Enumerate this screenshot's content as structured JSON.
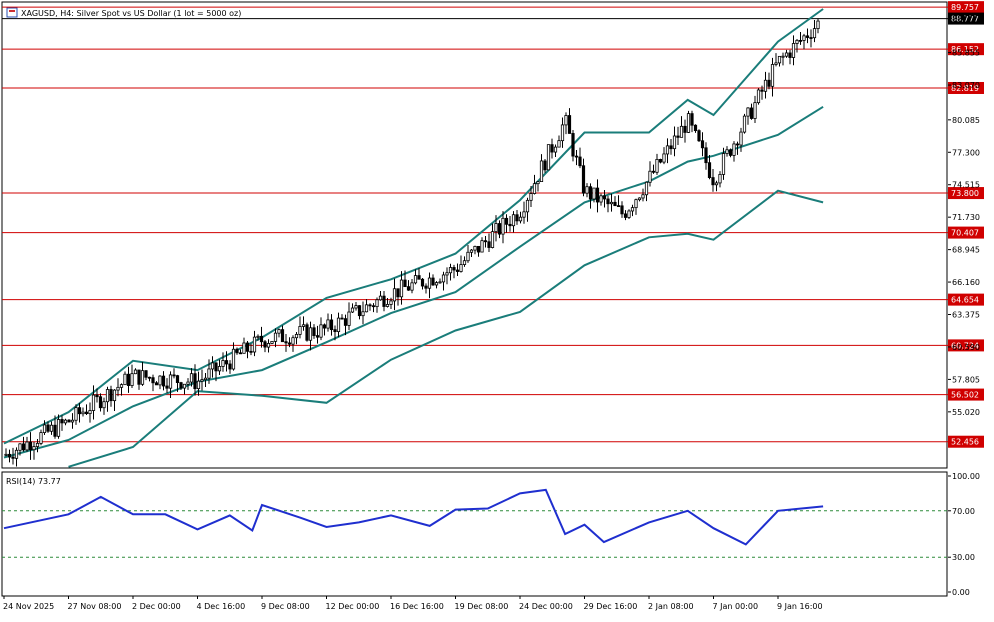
{
  "window": {
    "title": "XAGUSD, H4:  Silver Spot vs US Dollar (1 lot = 5000 oz)",
    "icon": "chart-window-icon"
  },
  "colors": {
    "background": "#ffffff",
    "grid": "#000000",
    "candle": "#000000",
    "level_line": "#d00000",
    "level_label_bg": "#d00000",
    "level_label_text": "#ffffff",
    "bollinger": "#1a7d7a",
    "rsi": "#1f2fcf",
    "rsi_level": "#2e8b3a"
  },
  "chart_data": [
    {
      "type": "candlestick",
      "symbol": "XAGUSD",
      "timeframe": "H4",
      "title": "XAGUSD, H4:  Silver Spot vs US Dollar (1 lot = 5000 oz)",
      "ylim": [
        50.2,
        90.2
      ],
      "y_tick_labels": [
        "88.777",
        "85.855",
        "83.070",
        "80.085",
        "77.300",
        "74.515",
        "71.730",
        "68.945",
        "66.160",
        "63.375",
        "60.590",
        "57.805",
        "55.020"
      ],
      "x_tick_labels": [
        "24 Nov 2025",
        "27 Nov 08:00",
        "2 Dec 00:00",
        "4 Dec 16:00",
        "9 Dec 08:00",
        "12 Dec 00:00",
        "16 Dec 16:00",
        "19 Dec 08:00",
        "24 Dec 00:00",
        "29 Dec 16:00",
        "2 Jan 08:00",
        "7 Jan 00:00",
        "9 Jan 16:00"
      ],
      "current_price_label": "88.777",
      "ask_price_label": "89.757",
      "horizontal_levels": [
        86.152,
        82.819,
        73.8,
        70.407,
        64.654,
        60.724,
        56.502,
        52.456
      ],
      "horizontal_level_labels": [
        "86.152",
        "82.819",
        "73.800",
        "70.407",
        "64.654",
        "60.724",
        "56.502",
        "52.456"
      ],
      "series": [
        {
          "name": "close (approx.)",
          "points": [
            [
              "24 Nov 2025",
              51.3
            ],
            [
              "27 Nov 08:00",
              54.2
            ],
            [
              "2 Dec 00:00",
              58.1
            ],
            [
              "4 Dec 16:00",
              57.6
            ],
            [
              "9 Dec 08:00",
              61.2
            ],
            [
              "12 Dec 00:00",
              62.1
            ],
            [
              "16 Dec 16:00",
              65.2
            ],
            [
              "19 Dec 08:00",
              67.3
            ],
            [
              "24 Dec 00:00",
              72.3
            ],
            [
              "26 Dec",
              80.0
            ],
            [
              "29 Dec 16:00",
              74.0
            ],
            [
              "31 Dec",
              72.0
            ],
            [
              "2 Jan 08:00",
              75.0
            ],
            [
              "5 Jan",
              80.0
            ],
            [
              "7 Jan 00:00",
              75.0
            ],
            [
              "9 Jan 16:00",
              85.0
            ],
            [
              "12 Jan",
              88.8
            ]
          ]
        },
        {
          "name": "Bollinger upper (approx.)",
          "points": [
            [
              "24 Nov 2025",
              52.3
            ],
            [
              "27 Nov 08:00",
              55.0
            ],
            [
              "2 Dec 00:00",
              59.4
            ],
            [
              "4 Dec 16:00",
              58.6
            ],
            [
              "9 Dec 08:00",
              61.4
            ],
            [
              "12 Dec 00:00",
              64.8
            ],
            [
              "16 Dec 16:00",
              66.4
            ],
            [
              "19 Dec 08:00",
              68.6
            ],
            [
              "24 Dec 00:00",
              73.2
            ],
            [
              "29 Dec 16:00",
              79.0
            ],
            [
              "2 Jan 08:00",
              79.0
            ],
            [
              "5 Jan",
              81.8
            ],
            [
              "7 Jan 00:00",
              80.5
            ],
            [
              "9 Jan 16:00",
              86.8
            ],
            [
              "12 Jan",
              89.6
            ]
          ]
        },
        {
          "name": "Bollinger middle (approx.)",
          "points": [
            [
              "24 Nov 2025",
              51.1
            ],
            [
              "27 Nov 08:00",
              52.6
            ],
            [
              "2 Dec 00:00",
              55.5
            ],
            [
              "4 Dec 16:00",
              57.6
            ],
            [
              "9 Dec 08:00",
              58.6
            ],
            [
              "12 Dec 00:00",
              61.0
            ],
            [
              "16 Dec 16:00",
              63.5
            ],
            [
              "19 Dec 08:00",
              65.3
            ],
            [
              "24 Dec 00:00",
              69.2
            ],
            [
              "29 Dec 16:00",
              73.0
            ],
            [
              "2 Jan 08:00",
              74.8
            ],
            [
              "5 Jan",
              76.5
            ],
            [
              "7 Jan 00:00",
              77.0
            ],
            [
              "9 Jan 16:00",
              78.8
            ],
            [
              "12 Jan",
              81.2
            ]
          ]
        },
        {
          "name": "Bollinger lower (approx.)",
          "points": [
            [
              "27 Nov 08:00",
              50.3
            ],
            [
              "2 Dec 00:00",
              52.0
            ],
            [
              "4 Dec 16:00",
              56.8
            ],
            [
              "9 Dec 08:00",
              56.4
            ],
            [
              "12 Dec 00:00",
              55.8
            ],
            [
              "16 Dec 16:00",
              59.5
            ],
            [
              "19 Dec 08:00",
              62.0
            ],
            [
              "24 Dec 00:00",
              63.6
            ],
            [
              "29 Dec 16:00",
              67.6
            ],
            [
              "2 Jan 08:00",
              70.0
            ],
            [
              "5 Jan",
              70.3
            ],
            [
              "7 Jan 00:00",
              69.8
            ],
            [
              "9 Jan 16:00",
              74.0
            ],
            [
              "12 Jan",
              73.0
            ]
          ]
        }
      ]
    },
    {
      "type": "line",
      "title": "RSI(14) 73.77",
      "ylim": [
        0,
        100
      ],
      "y_tick_labels": [
        "100.00",
        "70.00",
        "30.00",
        "0.00"
      ],
      "levels": [
        70,
        30
      ],
      "series": [
        {
          "name": "RSI(14)",
          "points": [
            [
              "24 Nov 2025",
              55
            ],
            [
              "27 Nov 08:00",
              67
            ],
            [
              "28 Nov",
              82
            ],
            [
              "2 Dec 00:00",
              67
            ],
            [
              "3 Dec",
              67
            ],
            [
              "4 Dec 16:00",
              54
            ],
            [
              "6 Dec",
              66
            ],
            [
              "8 Dec",
              53
            ],
            [
              "9 Dec 08:00",
              75
            ],
            [
              "11 Dec",
              64
            ],
            [
              "12 Dec 00:00",
              56
            ],
            [
              "14 Dec",
              60
            ],
            [
              "16 Dec 16:00",
              66
            ],
            [
              "18 Dec",
              57
            ],
            [
              "19 Dec 08:00",
              71
            ],
            [
              "22 Dec",
              72
            ],
            [
              "24 Dec 00:00",
              85
            ],
            [
              "25 Dec",
              88
            ],
            [
              "26 Dec",
              50
            ],
            [
              "29 Dec 16:00",
              58
            ],
            [
              "30 Dec",
              43
            ],
            [
              "2 Jan 08:00",
              60
            ],
            [
              "5 Jan",
              70
            ],
            [
              "7 Jan 00:00",
              55
            ],
            [
              "8 Jan",
              41
            ],
            [
              "9 Jan 16:00",
              70
            ],
            [
              "12 Jan",
              73.8
            ]
          ]
        }
      ]
    }
  ]
}
